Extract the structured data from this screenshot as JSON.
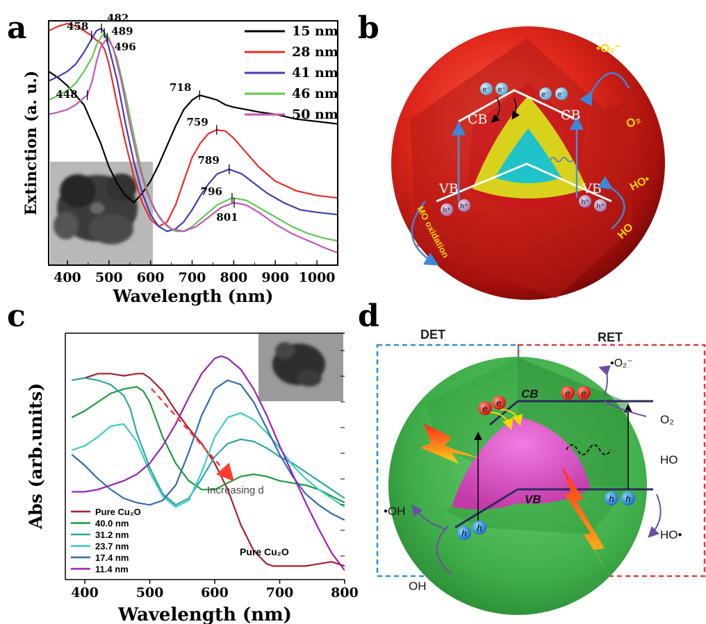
{
  "panels": {
    "a": {
      "label": "a"
    },
    "b": {
      "label": "b"
    },
    "c": {
      "label": "c"
    },
    "d": {
      "label": "d"
    }
  },
  "colors": {
    "black": "#000000",
    "red": "#ee2a24",
    "blue": "#3a3fb0",
    "green": "#5ec84b",
    "magenta": "#c454b6",
    "c_red": "#a81e2a",
    "c_green": "#1c9a3c",
    "c_teal": "#2aa6a0",
    "c_cyan": "#3ccbc0",
    "c_blue": "#2f6bb3",
    "c_purple": "#9a1fb5"
  },
  "chart_data": [
    {
      "type": "line",
      "panel": "a",
      "title": "",
      "xlabel": "Wavelength (nm)",
      "ylabel": "Extinction (a. u.)",
      "xlim": [
        355,
        1050
      ],
      "xticks": [
        400,
        500,
        600,
        700,
        800,
        900,
        1000
      ],
      "y_tick_labels": false,
      "legend_position": "top-right",
      "series": [
        {
          "name": "15 nm",
          "color": "black",
          "x": [
            355,
            380,
            400,
            420,
            440,
            460,
            470,
            480,
            490,
            500,
            520,
            540,
            560,
            580,
            600,
            620,
            640,
            660,
            680,
            700,
            718,
            740,
            760,
            780,
            800,
            830,
            860,
            900,
            950,
            1000,
            1050
          ],
          "y": [
            0.8,
            0.77,
            0.74,
            0.7,
            0.66,
            0.58,
            0.54,
            0.5,
            0.45,
            0.4,
            0.33,
            0.28,
            0.25,
            0.29,
            0.34,
            0.41,
            0.49,
            0.57,
            0.64,
            0.68,
            0.7,
            0.69,
            0.68,
            0.66,
            0.65,
            0.64,
            0.63,
            0.62,
            0.6,
            0.59,
            0.58
          ]
        },
        {
          "name": "28 nm",
          "color": "red",
          "x": [
            355,
            380,
            400,
            420,
            440,
            458,
            470,
            480,
            490,
            500,
            520,
            540,
            560,
            580,
            600,
            620,
            640,
            660,
            680,
            700,
            720,
            740,
            759,
            780,
            800,
            830,
            860,
            900,
            950,
            1000,
            1050
          ],
          "y": [
            0.97,
            0.99,
            1.0,
            0.99,
            0.97,
            0.95,
            0.93,
            0.92,
            0.89,
            0.83,
            0.66,
            0.5,
            0.36,
            0.25,
            0.18,
            0.15,
            0.17,
            0.24,
            0.34,
            0.44,
            0.5,
            0.54,
            0.555,
            0.55,
            0.52,
            0.46,
            0.4,
            0.34,
            0.3,
            0.28,
            0.27
          ]
        },
        {
          "name": "41 nm",
          "color": "blue",
          "x": [
            355,
            380,
            400,
            420,
            440,
            460,
            470,
            482,
            490,
            500,
            520,
            540,
            560,
            580,
            600,
            620,
            640,
            660,
            680,
            700,
            720,
            740,
            760,
            789,
            820,
            850,
            880,
            920,
            960,
            1000,
            1050
          ],
          "y": [
            0.76,
            0.78,
            0.8,
            0.83,
            0.88,
            0.94,
            0.97,
            0.98,
            0.96,
            0.9,
            0.76,
            0.58,
            0.42,
            0.29,
            0.2,
            0.15,
            0.13,
            0.14,
            0.17,
            0.22,
            0.28,
            0.33,
            0.37,
            0.39,
            0.37,
            0.33,
            0.29,
            0.25,
            0.22,
            0.21,
            0.2
          ]
        },
        {
          "name": "46 nm",
          "color": "green",
          "x": [
            355,
            380,
            400,
            420,
            440,
            460,
            470,
            480,
            489,
            500,
            520,
            540,
            560,
            580,
            600,
            620,
            640,
            660,
            680,
            700,
            720,
            740,
            760,
            796,
            830,
            860,
            900,
            940,
            980,
            1020,
            1050
          ],
          "y": [
            0.68,
            0.7,
            0.72,
            0.75,
            0.8,
            0.86,
            0.91,
            0.94,
            0.96,
            0.94,
            0.85,
            0.7,
            0.53,
            0.37,
            0.26,
            0.19,
            0.15,
            0.13,
            0.13,
            0.15,
            0.18,
            0.21,
            0.24,
            0.27,
            0.26,
            0.23,
            0.19,
            0.15,
            0.12,
            0.1,
            0.09
          ]
        },
        {
          "name": "50 nm",
          "color": "magenta",
          "x": [
            355,
            380,
            400,
            420,
            440,
            448,
            460,
            470,
            480,
            496,
            510,
            530,
            550,
            570,
            590,
            610,
            630,
            650,
            680,
            710,
            740,
            770,
            801,
            830,
            860,
            900,
            940,
            980,
            1020,
            1050
          ],
          "y": [
            0.62,
            0.63,
            0.64,
            0.66,
            0.69,
            0.7,
            0.76,
            0.84,
            0.9,
            0.94,
            0.9,
            0.76,
            0.58,
            0.42,
            0.3,
            0.22,
            0.17,
            0.14,
            0.13,
            0.15,
            0.19,
            0.23,
            0.25,
            0.24,
            0.21,
            0.16,
            0.12,
            0.09,
            0.06,
            0.04
          ]
        }
      ],
      "peak_labels": [
        {
          "text": "458",
          "x": 458,
          "series": "28 nm"
        },
        {
          "text": "482",
          "x": 482,
          "series": "41 nm"
        },
        {
          "text": "489",
          "x": 489,
          "series": "46 nm"
        },
        {
          "text": "496",
          "x": 496,
          "series": "50 nm"
        },
        {
          "text": "448",
          "x": 448,
          "series": "50 nm"
        },
        {
          "text": "718",
          "x": 718,
          "series": "15 nm"
        },
        {
          "text": "759",
          "x": 759,
          "series": "28 nm"
        },
        {
          "text": "789",
          "x": 789,
          "series": "41 nm"
        },
        {
          "text": "796",
          "x": 796,
          "series": "46 nm"
        },
        {
          "text": "801",
          "x": 801,
          "series": "50 nm"
        }
      ]
    },
    {
      "type": "line",
      "panel": "c",
      "title": "",
      "xlabel": "Wavelength (nm)",
      "ylabel": "Abs (arb.units)",
      "xlim": [
        370,
        800
      ],
      "xticks": [
        400,
        500,
        600,
        700,
        800
      ],
      "y_tick_labels": false,
      "legend_position": "bottom-left",
      "annotations": [
        "Increasing d",
        "Pure Cu₂O"
      ],
      "series": [
        {
          "name": "Pure Cu₂O",
          "color": "c_red",
          "x": [
            380,
            400,
            420,
            440,
            460,
            480,
            490,
            500,
            520,
            540,
            560,
            580,
            600,
            620,
            640,
            660,
            680,
            690,
            700,
            720,
            740,
            760,
            780,
            790,
            800
          ],
          "y": [
            0.88,
            0.89,
            0.91,
            0.91,
            0.9,
            0.91,
            0.91,
            0.89,
            0.83,
            0.74,
            0.66,
            0.59,
            0.5,
            0.38,
            0.22,
            0.1,
            0.04,
            0.03,
            0.03,
            0.03,
            0.03,
            0.04,
            0.05,
            0.04,
            0.03
          ]
        },
        {
          "name": "40.0 nm",
          "color": "c_green",
          "x": [
            380,
            400,
            420,
            440,
            460,
            480,
            490,
            500,
            520,
            540,
            560,
            580,
            600,
            620,
            640,
            660,
            680,
            700,
            720,
            740,
            760,
            780,
            800
          ],
          "y": [
            0.71,
            0.74,
            0.78,
            0.82,
            0.84,
            0.85,
            0.83,
            0.78,
            0.62,
            0.5,
            0.42,
            0.38,
            0.38,
            0.41,
            0.44,
            0.45,
            0.44,
            0.42,
            0.41,
            0.4,
            0.38,
            0.35,
            0.32
          ]
        },
        {
          "name": "31.2 nm",
          "color": "c_teal",
          "x": [
            380,
            400,
            420,
            440,
            460,
            470,
            480,
            500,
            520,
            540,
            560,
            580,
            600,
            620,
            640,
            660,
            680,
            700,
            720,
            740,
            760,
            780,
            800
          ],
          "y": [
            0.88,
            0.89,
            0.88,
            0.86,
            0.81,
            0.75,
            0.64,
            0.48,
            0.36,
            0.31,
            0.34,
            0.43,
            0.53,
            0.59,
            0.61,
            0.6,
            0.57,
            0.53,
            0.5,
            0.46,
            0.42,
            0.38,
            0.34
          ]
        },
        {
          "name": "23.7 nm",
          "color": "c_cyan",
          "x": [
            380,
            400,
            420,
            440,
            460,
            480,
            500,
            520,
            540,
            560,
            580,
            600,
            620,
            640,
            660,
            680,
            700,
            720,
            740,
            760,
            780,
            800
          ],
          "y": [
            0.56,
            0.58,
            0.62,
            0.67,
            0.68,
            0.6,
            0.46,
            0.35,
            0.3,
            0.33,
            0.46,
            0.62,
            0.71,
            0.73,
            0.7,
            0.64,
            0.57,
            0.49,
            0.43,
            0.38,
            0.34,
            0.3
          ]
        },
        {
          "name": "17.4 nm",
          "color": "c_blue",
          "x": [
            380,
            400,
            420,
            440,
            460,
            480,
            500,
            520,
            540,
            560,
            580,
            600,
            620,
            640,
            660,
            680,
            700,
            720,
            740,
            760,
            780,
            800
          ],
          "y": [
            0.54,
            0.49,
            0.43,
            0.38,
            0.34,
            0.32,
            0.31,
            0.33,
            0.4,
            0.55,
            0.72,
            0.84,
            0.88,
            0.86,
            0.78,
            0.66,
            0.54,
            0.44,
            0.36,
            0.31,
            0.27,
            0.24
          ]
        },
        {
          "name": "11.4 nm",
          "color": "c_purple",
          "x": [
            380,
            400,
            420,
            440,
            460,
            480,
            500,
            520,
            540,
            560,
            580,
            600,
            610,
            620,
            640,
            660,
            680,
            700,
            720,
            740,
            760,
            780,
            800
          ],
          "y": [
            0.37,
            0.37,
            0.38,
            0.4,
            0.42,
            0.45,
            0.5,
            0.58,
            0.68,
            0.8,
            0.91,
            0.98,
            0.99,
            0.98,
            0.93,
            0.84,
            0.72,
            0.58,
            0.45,
            0.32,
            0.2,
            0.09,
            0.01
          ]
        }
      ]
    }
  ],
  "diagram_b": {
    "labels": {
      "cb_left": "CB",
      "cb_right": "CB",
      "vb_left": "VB",
      "vb_right": "VB",
      "electron": "e⁻",
      "hole": "h⁺",
      "superoxide": "•O₂⁻",
      "oxygen": "O₂",
      "hydroxyl_radical": "HO•",
      "hydroxyl": "HO",
      "mo_oxidation": "MO oxidation"
    }
  },
  "diagram_d": {
    "labels": {
      "det": "DET",
      "ret": "RET",
      "cb": "CB",
      "vb": "VB",
      "electron": "e",
      "hole": "h",
      "superoxide": "•O₂⁻",
      "oxygen": "O₂",
      "ho": "HO",
      "ho_radical": "HO•",
      "oh_radical": "•OH",
      "oh": "OH"
    }
  }
}
